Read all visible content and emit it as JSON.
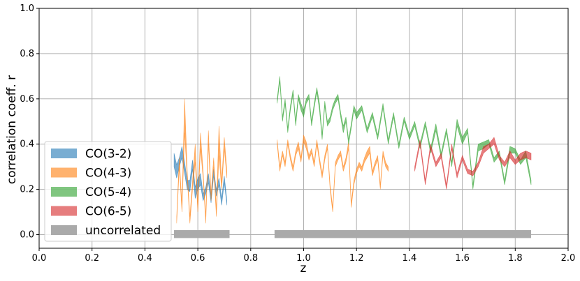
{
  "chart_data": {
    "type": "area",
    "xlabel": "z",
    "ylabel": "correlation coeff. r",
    "xlim": [
      0.0,
      2.0
    ],
    "ylim": [
      -0.06,
      1.0
    ],
    "xticks": [
      "0.0",
      "0.2",
      "0.4",
      "0.6",
      "0.8",
      "1.0",
      "1.2",
      "1.4",
      "1.6",
      "1.8",
      "2.0"
    ],
    "yticks": [
      "0.0",
      "0.2",
      "0.4",
      "0.6",
      "0.8",
      "1.0"
    ],
    "grid": true,
    "legend_position": "lower-left",
    "series": [
      {
        "name": "CO(3-2)",
        "color": "#1f77b4",
        "x": [
          0.51,
          0.52,
          0.53,
          0.54,
          0.55,
          0.56,
          0.57,
          0.58,
          0.59,
          0.6,
          0.61,
          0.62,
          0.63,
          0.64,
          0.65,
          0.66,
          0.67,
          0.68,
          0.69,
          0.7,
          0.71
        ],
        "low": [
          0.3,
          0.25,
          0.3,
          0.34,
          0.27,
          0.2,
          0.19,
          0.29,
          0.16,
          0.2,
          0.22,
          0.15,
          0.18,
          0.23,
          0.14,
          0.26,
          0.17,
          0.22,
          0.13,
          0.23,
          0.13
        ],
        "high": [
          0.36,
          0.31,
          0.34,
          0.39,
          0.32,
          0.24,
          0.24,
          0.33,
          0.21,
          0.25,
          0.27,
          0.18,
          0.21,
          0.27,
          0.17,
          0.29,
          0.2,
          0.25,
          0.16,
          0.26,
          0.15
        ]
      },
      {
        "name": "CO(4-3)",
        "color": "#ff7f0e",
        "x": [
          0.52,
          0.53,
          0.54,
          0.55,
          0.56,
          0.57,
          0.58,
          0.59,
          0.6,
          0.61,
          0.62,
          0.63,
          0.64,
          0.65,
          0.66,
          0.67,
          0.68,
          0.69,
          0.7,
          0.71,
          0.9,
          0.91,
          0.92,
          0.93,
          0.94,
          0.95,
          0.96,
          0.97,
          0.98,
          0.99,
          1.0,
          1.01,
          1.02,
          1.03,
          1.04,
          1.05,
          1.06,
          1.07,
          1.08,
          1.09,
          1.1,
          1.11,
          1.12,
          1.13,
          1.14,
          1.15,
          1.16,
          1.17,
          1.18,
          1.19,
          1.2,
          1.21,
          1.22,
          1.23,
          1.24,
          1.25,
          1.26,
          1.27,
          1.28,
          1.29,
          1.3,
          1.31,
          1.32
        ],
        "low": [
          0.05,
          0.3,
          0.1,
          0.45,
          0.25,
          0.05,
          0.2,
          0.32,
          0.1,
          0.38,
          0.25,
          0.05,
          0.4,
          0.15,
          0.3,
          0.08,
          0.35,
          0.2,
          0.38,
          0.25,
          0.4,
          0.28,
          0.35,
          0.3,
          0.4,
          0.33,
          0.28,
          0.35,
          0.38,
          0.32,
          0.41,
          0.38,
          0.33,
          0.36,
          0.3,
          0.4,
          0.32,
          0.25,
          0.33,
          0.38,
          0.2,
          0.1,
          0.3,
          0.33,
          0.35,
          0.28,
          0.32,
          0.38,
          0.12,
          0.22,
          0.27,
          0.3,
          0.28,
          0.32,
          0.34,
          0.36,
          0.26,
          0.3,
          0.33,
          0.2,
          0.35,
          0.3,
          0.28
        ],
        "high": [
          0.08,
          0.34,
          0.13,
          0.6,
          0.28,
          0.08,
          0.24,
          0.4,
          0.13,
          0.45,
          0.28,
          0.08,
          0.46,
          0.18,
          0.34,
          0.11,
          0.48,
          0.23,
          0.43,
          0.28,
          0.42,
          0.3,
          0.37,
          0.32,
          0.42,
          0.35,
          0.3,
          0.37,
          0.41,
          0.34,
          0.44,
          0.41,
          0.35,
          0.38,
          0.32,
          0.42,
          0.34,
          0.27,
          0.35,
          0.4,
          0.22,
          0.12,
          0.32,
          0.35,
          0.37,
          0.3,
          0.34,
          0.41,
          0.14,
          0.24,
          0.29,
          0.32,
          0.3,
          0.34,
          0.37,
          0.39,
          0.28,
          0.32,
          0.35,
          0.22,
          0.37,
          0.32,
          0.3
        ]
      },
      {
        "name": "CO(5-4)",
        "color": "#2ca02c",
        "x": [
          0.9,
          0.91,
          0.92,
          0.93,
          0.94,
          0.95,
          0.96,
          0.97,
          0.98,
          0.99,
          1.0,
          1.01,
          1.02,
          1.03,
          1.04,
          1.05,
          1.06,
          1.07,
          1.08,
          1.09,
          1.1,
          1.11,
          1.12,
          1.13,
          1.14,
          1.15,
          1.16,
          1.17,
          1.18,
          1.19,
          1.2,
          1.22,
          1.24,
          1.26,
          1.28,
          1.3,
          1.32,
          1.34,
          1.36,
          1.38,
          1.4,
          1.42,
          1.44,
          1.46,
          1.48,
          1.5,
          1.52,
          1.54,
          1.56,
          1.58,
          1.6,
          1.62,
          1.64,
          1.66,
          1.68,
          1.7,
          1.72,
          1.74,
          1.76,
          1.78,
          1.8,
          1.82,
          1.84,
          1.86
        ],
        "low": [
          0.58,
          0.68,
          0.5,
          0.58,
          0.45,
          0.55,
          0.62,
          0.48,
          0.6,
          0.55,
          0.52,
          0.58,
          0.6,
          0.48,
          0.56,
          0.63,
          0.55,
          0.42,
          0.57,
          0.48,
          0.5,
          0.55,
          0.58,
          0.6,
          0.52,
          0.45,
          0.5,
          0.4,
          0.47,
          0.55,
          0.51,
          0.55,
          0.45,
          0.52,
          0.42,
          0.56,
          0.4,
          0.52,
          0.38,
          0.5,
          0.42,
          0.48,
          0.38,
          0.48,
          0.36,
          0.46,
          0.34,
          0.45,
          0.3,
          0.48,
          0.4,
          0.45,
          0.2,
          0.37,
          0.38,
          0.4,
          0.32,
          0.35,
          0.22,
          0.36,
          0.36,
          0.31,
          0.34,
          0.22
        ],
        "high": [
          0.6,
          0.7,
          0.52,
          0.6,
          0.47,
          0.57,
          0.64,
          0.5,
          0.62,
          0.58,
          0.55,
          0.6,
          0.62,
          0.5,
          0.58,
          0.65,
          0.58,
          0.44,
          0.59,
          0.5,
          0.52,
          0.57,
          0.6,
          0.62,
          0.54,
          0.48,
          0.52,
          0.42,
          0.49,
          0.57,
          0.54,
          0.57,
          0.47,
          0.54,
          0.44,
          0.58,
          0.42,
          0.54,
          0.4,
          0.52,
          0.44,
          0.5,
          0.4,
          0.5,
          0.38,
          0.49,
          0.36,
          0.47,
          0.32,
          0.51,
          0.43,
          0.47,
          0.22,
          0.4,
          0.41,
          0.42,
          0.34,
          0.37,
          0.24,
          0.39,
          0.38,
          0.33,
          0.37,
          0.24
        ]
      },
      {
        "name": "CO(6-5)",
        "color": "#d62728",
        "x": [
          1.42,
          1.44,
          1.46,
          1.48,
          1.5,
          1.52,
          1.54,
          1.56,
          1.58,
          1.6,
          1.62,
          1.64,
          1.66,
          1.68,
          1.7,
          1.72,
          1.74,
          1.76,
          1.78,
          1.8,
          1.82,
          1.84,
          1.86
        ],
        "low": [
          0.28,
          0.4,
          0.22,
          0.38,
          0.3,
          0.34,
          0.2,
          0.38,
          0.25,
          0.33,
          0.27,
          0.26,
          0.3,
          0.36,
          0.38,
          0.4,
          0.33,
          0.3,
          0.34,
          0.31,
          0.33,
          0.34,
          0.33
        ],
        "high": [
          0.3,
          0.42,
          0.24,
          0.4,
          0.32,
          0.36,
          0.22,
          0.4,
          0.27,
          0.35,
          0.29,
          0.28,
          0.32,
          0.39,
          0.4,
          0.43,
          0.35,
          0.32,
          0.37,
          0.33,
          0.36,
          0.37,
          0.36
        ]
      },
      {
        "name": "uncorrelated",
        "color": "#aaaaaa",
        "x_ranges": [
          [
            0.51,
            0.72
          ],
          [
            0.89,
            1.86
          ]
        ],
        "low": -0.015,
        "high": 0.02
      }
    ]
  }
}
